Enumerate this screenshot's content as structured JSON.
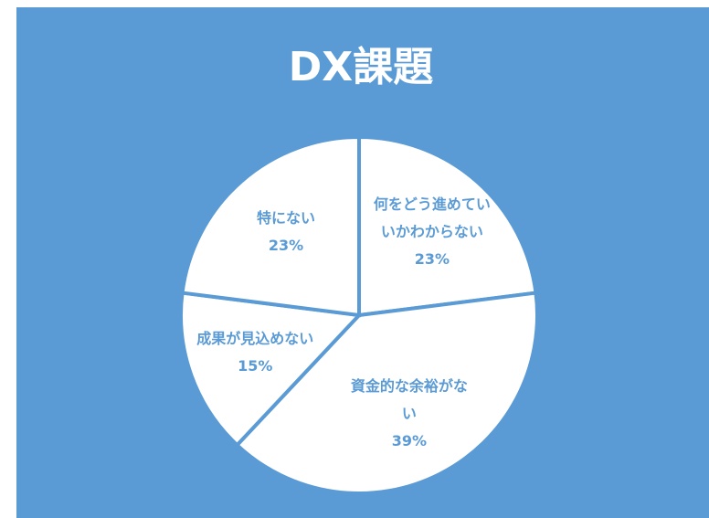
{
  "chart_data": {
    "type": "pie",
    "title": "DX課題",
    "categories": [
      "何をどう進めていいかわからない",
      "資金的な余裕がない",
      "成果が見込めない",
      "特にない"
    ],
    "values": [
      23,
      39,
      15,
      23
    ],
    "value_labels": [
      "23%",
      "39%",
      "15%",
      "23%"
    ],
    "color": "#ffffff",
    "background": "#5b9bd5"
  }
}
